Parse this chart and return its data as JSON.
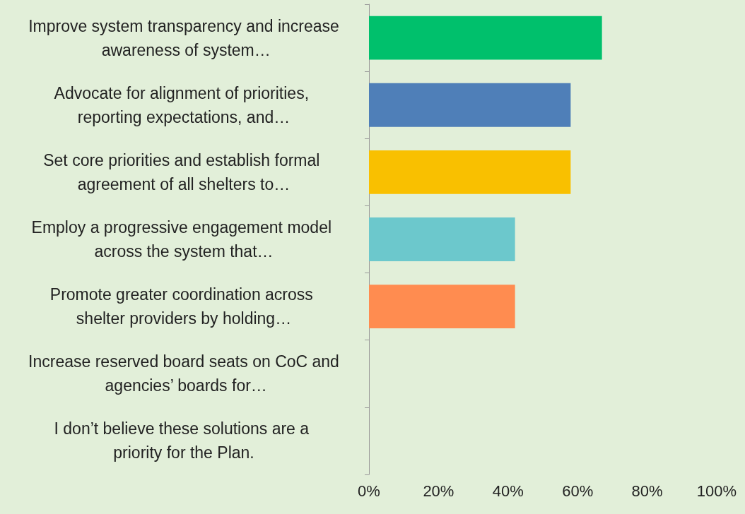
{
  "chart_data": {
    "type": "bar",
    "orientation": "horizontal",
    "categories": [
      "Improve system transparency and increase awareness of system…",
      "Advocate for alignment of priorities, reporting expectations, and…",
      "Set core priorities and establish formal agreement of all shelters to…",
      "Employ a progressive engagement model across the system that…",
      "Promote greater coordination across shelter providers by holding…",
      "Increase reserved board seats on CoC and agencies’ boards for…",
      "I don’t believe these solutions are a priority for the Plan."
    ],
    "values": [
      67,
      58,
      58,
      42,
      42,
      0,
      0
    ],
    "colors": [
      "#00c06c",
      "#4f7fb8",
      "#f9c000",
      "#6cc8cc",
      "#ff8c50",
      "#4f7fb8",
      "#4f7fb8"
    ],
    "xlim": [
      0,
      100
    ],
    "xticks": [
      {
        "value": 0,
        "label": "0%"
      },
      {
        "value": 20,
        "label": "20%"
      },
      {
        "value": 40,
        "label": "40%"
      },
      {
        "value": 60,
        "label": "60%"
      },
      {
        "value": 80,
        "label": "80%"
      },
      {
        "value": 100,
        "label": "100%"
      }
    ],
    "grid": false
  }
}
